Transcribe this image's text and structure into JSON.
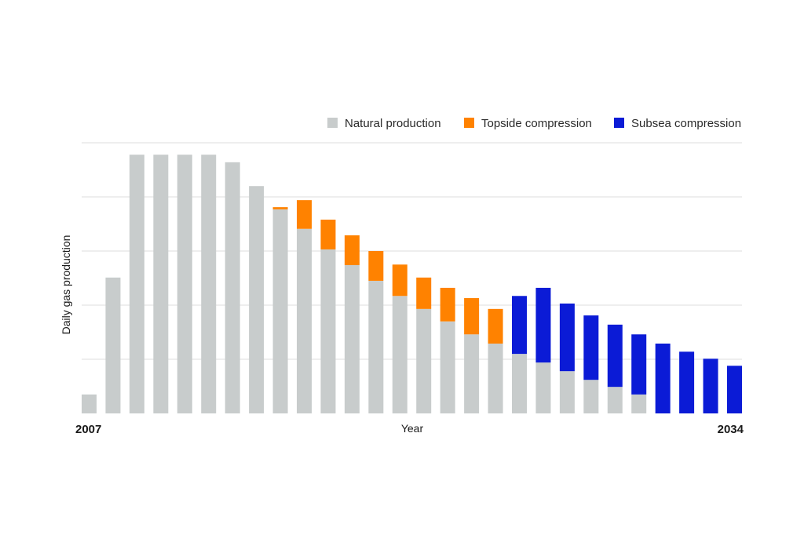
{
  "chart_data": {
    "type": "bar",
    "stacked": true,
    "title": "",
    "xlabel": "Year",
    "ylabel": "Daily gas production",
    "ylim": [
      0,
      5
    ],
    "grid": true,
    "grid_values": [
      1,
      2,
      3,
      4,
      5
    ],
    "legend_position": "top-right",
    "x_tick_labels": [
      "2007",
      "2034"
    ],
    "categories": [
      "2007",
      "2008",
      "2009",
      "2010",
      "2011",
      "2012",
      "2013",
      "2014",
      "2015",
      "2016",
      "2017",
      "2018",
      "2019",
      "2020",
      "2021",
      "2022",
      "2023",
      "2024",
      "2025",
      "2026",
      "2027",
      "2028",
      "2029",
      "2030",
      "2031",
      "2032",
      "2033",
      "2034"
    ],
    "series": [
      {
        "name": "Natural production",
        "color": "#c8cccc",
        "values": [
          0.35,
          2.51,
          4.78,
          4.78,
          4.78,
          4.78,
          4.64,
          4.2,
          3.77,
          3.41,
          3.03,
          2.74,
          2.45,
          2.17,
          1.93,
          1.7,
          1.46,
          1.29,
          1.1,
          0.94,
          0.78,
          0.62,
          0.49,
          0.35,
          0,
          0,
          0,
          0
        ]
      },
      {
        "name": "Topside compression",
        "color": "#ff8200",
        "values": [
          0,
          0,
          0,
          0,
          0,
          0,
          0,
          0,
          0.04,
          0.53,
          0.55,
          0.55,
          0.55,
          0.58,
          0.58,
          0.62,
          0.67,
          0.64,
          0,
          0,
          0,
          0,
          0,
          0,
          0,
          0,
          0,
          0
        ]
      },
      {
        "name": "Subsea compression",
        "color": "#0b1bd6",
        "values": [
          0,
          0,
          0,
          0,
          0,
          0,
          0,
          0,
          0,
          0,
          0,
          0,
          0,
          0,
          0,
          0,
          0,
          0,
          1.07,
          1.38,
          1.25,
          1.19,
          1.15,
          1.11,
          1.29,
          1.14,
          1.01,
          0.88
        ]
      }
    ]
  }
}
